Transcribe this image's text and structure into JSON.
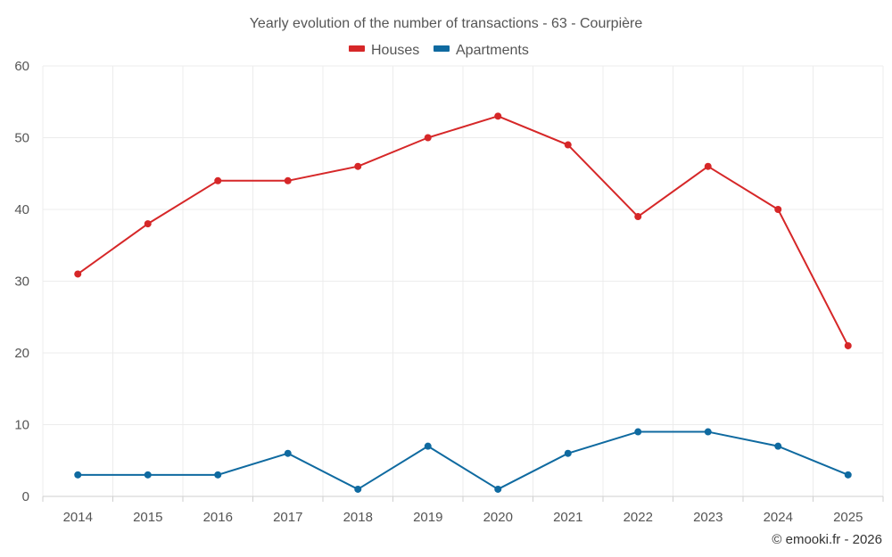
{
  "chart_data": {
    "type": "line",
    "title": "Yearly evolution of the number of transactions - 63 - Courpière",
    "categories": [
      "2014",
      "2015",
      "2016",
      "2017",
      "2018",
      "2019",
      "2020",
      "2021",
      "2022",
      "2023",
      "2024",
      "2025"
    ],
    "series": [
      {
        "name": "Houses",
        "color": "#d62728",
        "values": [
          31,
          38,
          44,
          44,
          46,
          50,
          53,
          49,
          39,
          46,
          40,
          21
        ]
      },
      {
        "name": "Apartments",
        "color": "#0f6aa0",
        "values": [
          3,
          3,
          3,
          6,
          1,
          7,
          1,
          6,
          9,
          9,
          7,
          3
        ]
      }
    ],
    "ylim": [
      0,
      60
    ],
    "yticks": [
      0,
      10,
      20,
      30,
      40,
      50,
      60
    ],
    "xlabel": "",
    "ylabel": "",
    "grid": true,
    "legend_position": "top-center"
  },
  "credit": "© emooki.fr - 2026"
}
